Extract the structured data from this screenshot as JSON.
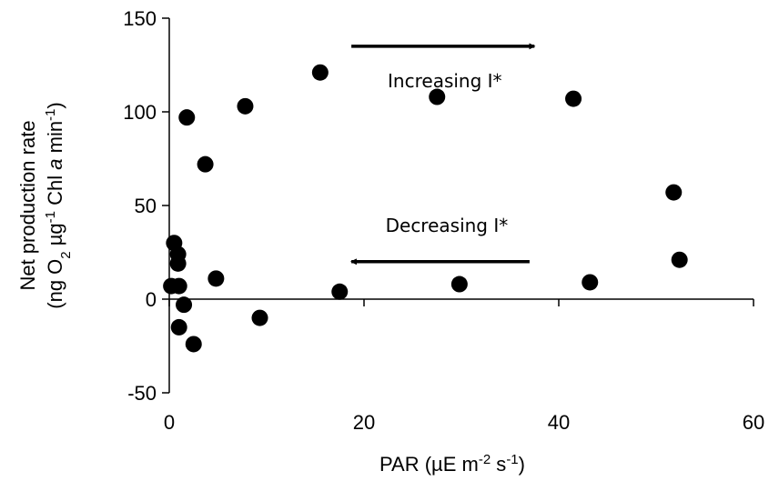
{
  "chart_data": {
    "type": "scatter",
    "xlabel": "PAR (µE m-2 s-1)",
    "xlabel_parts": [
      "PAR (µE m",
      "-2",
      " s",
      "-1",
      ")"
    ],
    "ylabel_line1": "Net production rate",
    "ylabel_line2": "(ng O2 µg-1 Chl a min-1)",
    "ylabel_line2_parts": [
      "(ng O",
      "2",
      " µg",
      "-1",
      " Chl ",
      "a",
      " min",
      "-1",
      ")"
    ],
    "xlim": [
      0,
      60
    ],
    "ylim": [
      -50,
      150
    ],
    "xticks": [
      0,
      20,
      40,
      60
    ],
    "yticks": [
      -50,
      0,
      50,
      100,
      150
    ],
    "grid": false,
    "marker_color": "#000000",
    "points": [
      {
        "x": 0.2,
        "y": 7
      },
      {
        "x": 0.5,
        "y": 30
      },
      {
        "x": 0.9,
        "y": 24
      },
      {
        "x": 0.9,
        "y": 19
      },
      {
        "x": 1.0,
        "y": 7
      },
      {
        "x": 1.0,
        "y": -15
      },
      {
        "x": 1.5,
        "y": -3
      },
      {
        "x": 1.8,
        "y": 97
      },
      {
        "x": 2.5,
        "y": -24
      },
      {
        "x": 3.7,
        "y": 72
      },
      {
        "x": 4.8,
        "y": 11
      },
      {
        "x": 7.8,
        "y": 103
      },
      {
        "x": 9.3,
        "y": -10
      },
      {
        "x": 15.5,
        "y": 121
      },
      {
        "x": 17.5,
        "y": 4
      },
      {
        "x": 27.5,
        "y": 108
      },
      {
        "x": 29.8,
        "y": 8
      },
      {
        "x": 41.5,
        "y": 107
      },
      {
        "x": 43.2,
        "y": 9
      },
      {
        "x": 51.8,
        "y": 57
      },
      {
        "x": 52.4,
        "y": 21
      }
    ],
    "annotations": [
      {
        "text": "Increasing I*",
        "arrow_from": [
          18.7,
          135
        ],
        "arrow_to": [
          37.5,
          135
        ],
        "text_x": 28.3,
        "text_y": 113
      },
      {
        "text": "Decreasing I*",
        "arrow_from": [
          37,
          20
        ],
        "arrow_to": [
          18.7,
          20
        ],
        "text_x": 28.5,
        "text_y": 36
      }
    ]
  }
}
